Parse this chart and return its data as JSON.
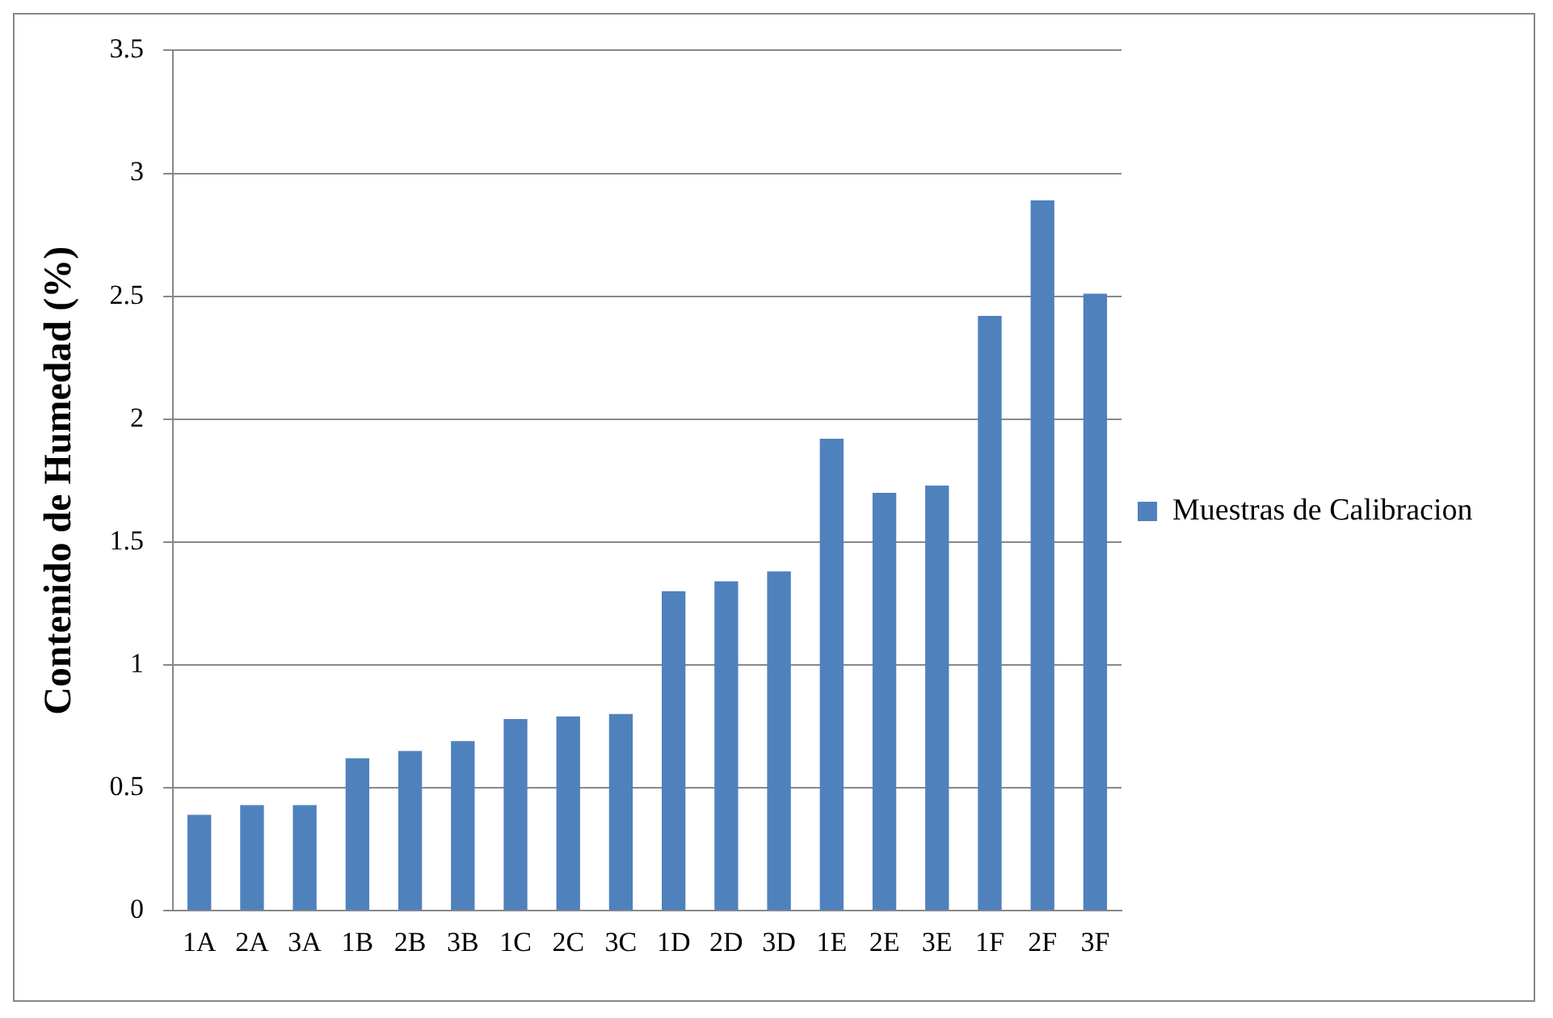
{
  "chart_data": {
    "type": "bar",
    "ylabel": "Contenido de Humedad (%)",
    "categories": [
      "1A",
      "2A",
      "3A",
      "1B",
      "2B",
      "3B",
      "1C",
      "2C",
      "3C",
      "1D",
      "2D",
      "3D",
      "1E",
      "2E",
      "3E",
      "1F",
      "2F",
      "3F"
    ],
    "series": [
      {
        "name": "Muestras de Calibracion",
        "color": "#4f81bd",
        "values": [
          0.39,
          0.43,
          0.43,
          0.62,
          0.65,
          0.69,
          0.78,
          0.79,
          0.8,
          1.3,
          1.34,
          1.38,
          1.92,
          1.7,
          1.73,
          2.42,
          2.89,
          2.51
        ]
      }
    ],
    "ylim": [
      0,
      3.5
    ],
    "yticks": [
      0,
      0.5,
      1,
      1.5,
      2,
      2.5,
      3,
      3.5
    ],
    "grid": "y",
    "legend": "right"
  }
}
